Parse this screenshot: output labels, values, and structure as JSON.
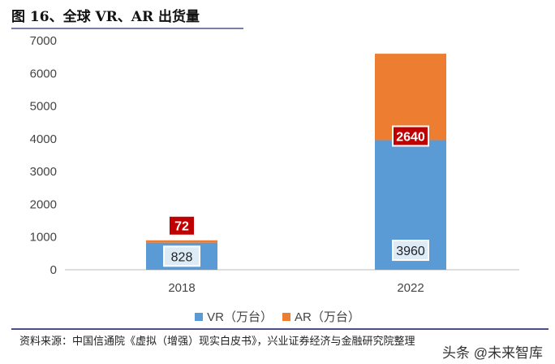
{
  "title": "图 16、全球 VR、AR 出货量",
  "source": "资料来源：中国信通院《虚拟（增强）现实白皮书》，兴业证券经济与金融研究院整理",
  "watermark": "头条 @未来智库",
  "chart_data": {
    "type": "bar",
    "stacked": true,
    "categories": [
      "2018",
      "2022"
    ],
    "series": [
      {
        "name": "VR（万台）",
        "values": [
          828,
          3960
        ],
        "color": "#5B9BD5"
      },
      {
        "name": "AR（万台）",
        "values": [
          72,
          2640
        ],
        "color": "#ED7D31"
      }
    ],
    "ylim": [
      0,
      7000
    ],
    "yticks": [
      0,
      1000,
      2000,
      3000,
      4000,
      5000,
      6000,
      7000
    ],
    "grid": false,
    "legend": "bottom"
  }
}
